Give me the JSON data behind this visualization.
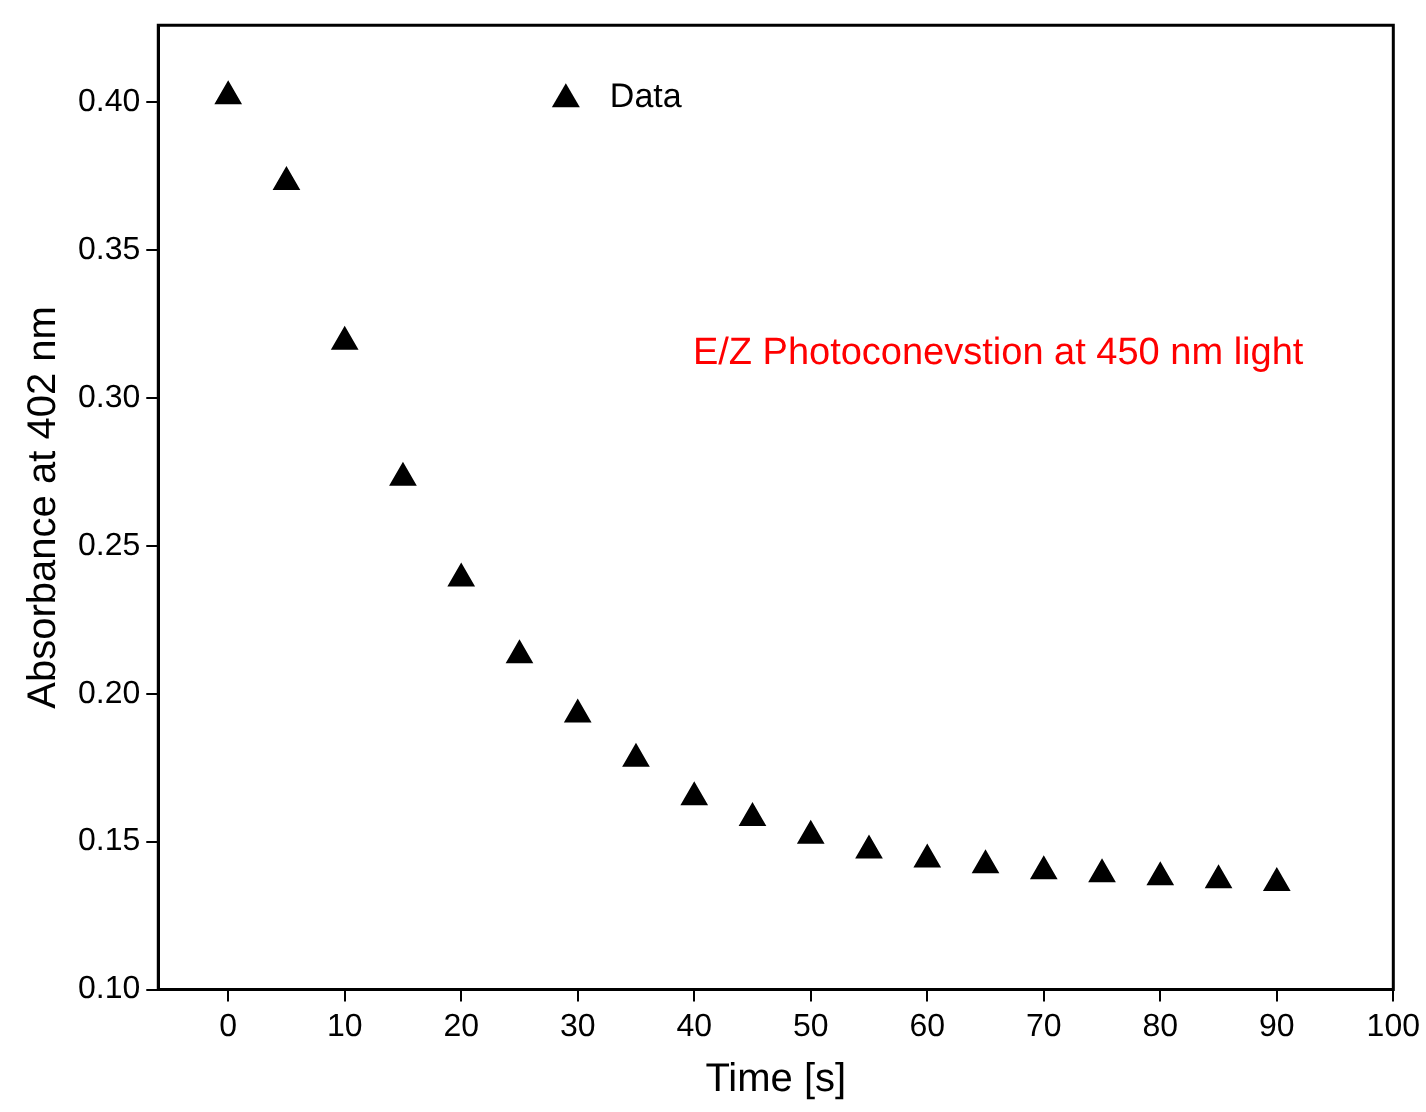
{
  "chart_data": {
    "type": "scatter",
    "xlabel": "Time [s]",
    "ylabel": "Absorbance at 402 nm",
    "x": [
      0,
      5,
      10,
      15,
      20,
      25,
      30,
      35,
      40,
      45,
      50,
      55,
      60,
      65,
      70,
      75,
      80,
      85,
      90
    ],
    "series": [
      {
        "name": "Data",
        "color": "#000000",
        "values": [
          0.402,
          0.373,
          0.319,
          0.273,
          0.239,
          0.213,
          0.193,
          0.178,
          0.165,
          0.158,
          0.152,
          0.147,
          0.144,
          0.142,
          0.14,
          0.139,
          0.138,
          0.137,
          0.136
        ]
      }
    ],
    "xlim": [
      -6,
      100
    ],
    "xticks": [
      0,
      10,
      20,
      30,
      40,
      50,
      60,
      70,
      80,
      90,
      100
    ],
    "ylim": [
      0.1,
      0.426
    ],
    "yticks": [
      {
        "value": 0.1,
        "label": "0.10"
      },
      {
        "value": 0.15,
        "label": "0.15"
      },
      {
        "value": 0.2,
        "label": "0.20"
      },
      {
        "value": 0.25,
        "label": "0.25"
      },
      {
        "value": 0.3,
        "label": "0.30"
      },
      {
        "value": 0.35,
        "label": "0.35"
      },
      {
        "value": 0.4,
        "label": "0.40"
      }
    ],
    "annotations": [
      "E/Z Photoconevstion at 450 nm light"
    ],
    "grid": false,
    "legend": "top",
    "marker": "triangle"
  }
}
